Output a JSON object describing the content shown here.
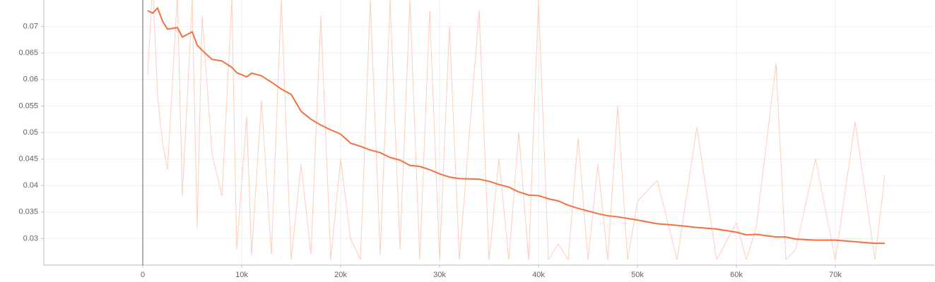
{
  "chart_data": {
    "type": "line",
    "x": [
      500,
      1000,
      1500,
      2000,
      2500,
      3500,
      4000,
      5000,
      5500,
      6000,
      7000,
      8000,
      9000,
      9500,
      10500,
      11000,
      12000,
      13000,
      14000,
      15000,
      16000,
      17000,
      18000,
      19000,
      20000,
      21000,
      22000,
      23000,
      24000,
      25000,
      26000,
      27000,
      28000,
      29000,
      30000,
      31000,
      32000,
      34000,
      35000,
      36000,
      37000,
      38000,
      39000,
      40000,
      41000,
      42000,
      43000,
      44000,
      45000,
      46000,
      47000,
      48000,
      49000,
      50000,
      52000,
      54000,
      56000,
      58000,
      60000,
      61000,
      62000,
      64000,
      65000,
      66000,
      68000,
      70000,
      72000,
      74000,
      75000
    ],
    "series": [
      {
        "color": "#ffccbc",
        "values": [
          0.061,
          0.078,
          0.057,
          0.048,
          0.043,
          0.076,
          0.038,
          0.075,
          0.032,
          0.072,
          0.046,
          0.038,
          0.075,
          0.028,
          0.053,
          0.027,
          0.056,
          0.027,
          0.075,
          0.026,
          0.044,
          0.027,
          0.072,
          0.026,
          0.045,
          0.03,
          0.026,
          0.075,
          0.027,
          0.075,
          0.028,
          0.075,
          0.026,
          0.073,
          0.026,
          0.07,
          0.026,
          0.073,
          0.026,
          0.045,
          0.026,
          0.05,
          0.026,
          0.075,
          0.026,
          0.029,
          0.026,
          0.049,
          0.026,
          0.044,
          0.026,
          0.055,
          0.026,
          0.037,
          0.041,
          0.026,
          0.051,
          0.026,
          0.033,
          0.026,
          0.032,
          0.063,
          0.026,
          0.028,
          0.045,
          0.026,
          0.052,
          0.026,
          0.042
        ]
      },
      {
        "color": "#f4703f",
        "values": [
          0.073,
          0.0725,
          0.0735,
          0.071,
          0.0695,
          0.0698,
          0.068,
          0.069,
          0.0665,
          0.0655,
          0.0638,
          0.0635,
          0.0623,
          0.0613,
          0.0605,
          0.0612,
          0.0607,
          0.0595,
          0.0582,
          0.0572,
          0.054,
          0.0525,
          0.0514,
          0.0505,
          0.0497,
          0.048,
          0.0474,
          0.0467,
          0.0462,
          0.0453,
          0.0448,
          0.0438,
          0.0436,
          0.043,
          0.0422,
          0.0416,
          0.0413,
          0.0412,
          0.0408,
          0.0402,
          0.0397,
          0.0388,
          0.0382,
          0.0381,
          0.0375,
          0.0371,
          0.0363,
          0.0357,
          0.0352,
          0.0347,
          0.0343,
          0.0341,
          0.0338,
          0.0335,
          0.0328,
          0.0325,
          0.0321,
          0.0318,
          0.0312,
          0.0307,
          0.0308,
          0.0303,
          0.0303,
          0.0299,
          0.0297,
          0.0297,
          0.0294,
          0.0291,
          0.0291
        ]
      }
    ],
    "xlim": [
      -10000,
      80000
    ],
    "xticks": [
      0,
      {
        "value": 10000,
        "label": "10k"
      },
      {
        "value": 20000,
        "label": "20k"
      },
      {
        "value": 30000,
        "label": "30k"
      },
      {
        "value": 40000,
        "label": "40k"
      },
      {
        "value": 50000,
        "label": "50k"
      },
      {
        "value": 60000,
        "label": "60k"
      },
      {
        "value": 70000,
        "label": "70k"
      }
    ],
    "ylim": [
      0.025,
      0.075
    ],
    "yticks": [
      0.03,
      0.035,
      0.04,
      0.045,
      0.05,
      0.055,
      0.06,
      0.065,
      0.07
    ],
    "grid": true
  }
}
